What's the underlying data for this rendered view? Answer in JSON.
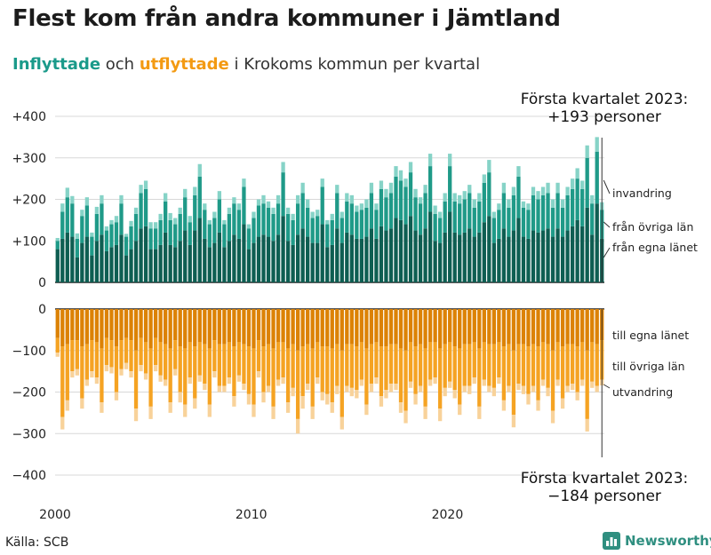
{
  "title": "Flest kom från andra kommuner i Jämtland",
  "subtitle": {
    "part1": "Inflyttade",
    "part2": " och ",
    "part3": "utflyttade",
    "part4": " i Krokoms kommun per kvartal"
  },
  "source": "Källa: SCB",
  "brand": "Newsworthy",
  "colors": {
    "in_dark": "#0e5e52",
    "in_mid": "#1f9a88",
    "in_light": "#86d3c7",
    "out_dark": "#dc8205",
    "out_mid": "#f5a323",
    "out_light": "#f8d29a",
    "grid": "#d8d8d8",
    "axis": "#222222"
  },
  "chart_data": {
    "type": "bar",
    "layout": "diverging stacked bar",
    "x_start": "2000 Q1",
    "x_end": "2023 Q1",
    "x_ticks": [
      "2000",
      "2010",
      "2020"
    ],
    "upper_ticks": [
      "+400",
      "+300",
      "+200",
      "+100",
      "0"
    ],
    "lower_ticks": [
      "0",
      "−100",
      "−200",
      "−300",
      "−400"
    ],
    "upper_ylim": [
      0,
      400
    ],
    "lower_ylim": [
      -400,
      0
    ],
    "in_series_names": [
      "från egna länet",
      "från övriga län",
      "invandring"
    ],
    "out_series_names": [
      "till egna länet",
      "till övriga län",
      "utvandring"
    ],
    "annotation_top_line1": "Första kvartalet 2023:",
    "annotation_top_line2": "+193 personer",
    "annotation_bottom_line1": "Första kvartalet 2023:",
    "annotation_bottom_line2": "−184 personer",
    "inflow_total": [
      107,
      190,
      228,
      208,
      118,
      175,
      205,
      120,
      182,
      210,
      135,
      150,
      160,
      210,
      117,
      148,
      180,
      235,
      245,
      145,
      145,
      165,
      215,
      167,
      155,
      180,
      225,
      160,
      230,
      285,
      190,
      150,
      170,
      220,
      150,
      180,
      205,
      190,
      250,
      140,
      170,
      200,
      210,
      195,
      180,
      210,
      290,
      180,
      165,
      210,
      240,
      200,
      170,
      175,
      250,
      150,
      165,
      235,
      170,
      215,
      210,
      185,
      190,
      200,
      240,
      190,
      245,
      225,
      240,
      280,
      270,
      250,
      290,
      225,
      205,
      235,
      310,
      185,
      170,
      215,
      310,
      215,
      210,
      220,
      235,
      200,
      215,
      260,
      295,
      170,
      190,
      240,
      200,
      230,
      280,
      195,
      190,
      230,
      220,
      230,
      240,
      200,
      240,
      200,
      230,
      250,
      275,
      245,
      330,
      210,
      350,
      193
    ],
    "inflow_egna": [
      80,
      105,
      120,
      110,
      60,
      95,
      110,
      65,
      100,
      115,
      75,
      85,
      90,
      115,
      65,
      80,
      100,
      130,
      135,
      80,
      80,
      90,
      120,
      90,
      85,
      100,
      125,
      90,
      125,
      155,
      105,
      85,
      95,
      120,
      85,
      100,
      115,
      105,
      140,
      80,
      95,
      110,
      115,
      110,
      100,
      115,
      160,
      100,
      90,
      115,
      130,
      110,
      95,
      95,
      140,
      85,
      90,
      130,
      95,
      120,
      115,
      105,
      105,
      110,
      130,
      105,
      135,
      125,
      130,
      155,
      150,
      140,
      160,
      125,
      115,
      130,
      170,
      100,
      95,
      120,
      170,
      120,
      115,
      120,
      130,
      110,
      120,
      145,
      160,
      95,
      105,
      130,
      110,
      125,
      155,
      110,
      105,
      125,
      120,
      125,
      130,
      110,
      130,
      110,
      125,
      135,
      150,
      135,
      180,
      115,
      190,
      105
    ],
    "inflow_ovriga": [
      20,
      65,
      85,
      80,
      45,
      65,
      75,
      45,
      65,
      75,
      50,
      55,
      55,
      75,
      45,
      55,
      65,
      85,
      90,
      50,
      50,
      60,
      75,
      60,
      55,
      65,
      80,
      55,
      85,
      100,
      70,
      55,
      60,
      80,
      55,
      65,
      75,
      70,
      90,
      50,
      60,
      75,
      75,
      70,
      65,
      75,
      105,
      65,
      60,
      75,
      85,
      70,
      60,
      65,
      90,
      55,
      60,
      85,
      60,
      75,
      75,
      65,
      70,
      70,
      85,
      70,
      90,
      80,
      85,
      100,
      95,
      90,
      105,
      80,
      75,
      85,
      110,
      65,
      60,
      75,
      110,
      75,
      75,
      80,
      85,
      70,
      75,
      95,
      105,
      60,
      70,
      85,
      70,
      85,
      100,
      70,
      70,
      85,
      80,
      85,
      85,
      70,
      85,
      70,
      85,
      90,
      100,
      90,
      120,
      75,
      125,
      70
    ],
    "outflow_total": [
      -115,
      -290,
      -245,
      -165,
      -160,
      -240,
      -185,
      -165,
      -180,
      -250,
      -150,
      -155,
      -220,
      -160,
      -145,
      -165,
      -270,
      -150,
      -170,
      -265,
      -150,
      -175,
      -185,
      -250,
      -160,
      -225,
      -260,
      -180,
      -240,
      -175,
      -195,
      -260,
      -165,
      -200,
      -200,
      -180,
      -235,
      -175,
      -195,
      -230,
      -260,
      -165,
      -225,
      -200,
      -265,
      -185,
      -180,
      -250,
      -210,
      -300,
      -240,
      -195,
      -265,
      -180,
      -220,
      -230,
      -250,
      -205,
      -290,
      -200,
      -210,
      -215,
      -185,
      -255,
      -200,
      -180,
      -235,
      -215,
      -200,
      -195,
      -250,
      -275,
      -190,
      -230,
      -200,
      -265,
      -185,
      -180,
      -270,
      -210,
      -190,
      -215,
      -255,
      -200,
      -205,
      -180,
      -265,
      -185,
      -200,
      -210,
      -180,
      -245,
      -200,
      -285,
      -195,
      -205,
      -230,
      -200,
      -245,
      -185,
      -210,
      -275,
      -185,
      -240,
      -200,
      -195,
      -220,
      -185,
      -295,
      -190,
      -200,
      -184
    ],
    "outflow_egna": [
      -70,
      -90,
      -85,
      -75,
      -75,
      -90,
      -85,
      -75,
      -80,
      -95,
      -70,
      -75,
      -90,
      -75,
      -70,
      -75,
      -100,
      -70,
      -80,
      -95,
      -70,
      -80,
      -85,
      -95,
      -75,
      -90,
      -95,
      -80,
      -90,
      -80,
      -85,
      -95,
      -75,
      -85,
      -85,
      -80,
      -90,
      -80,
      -85,
      -90,
      -95,
      -75,
      -90,
      -85,
      -95,
      -80,
      -80,
      -95,
      -85,
      -100,
      -90,
      -85,
      -95,
      -80,
      -90,
      -90,
      -95,
      -85,
      -100,
      -85,
      -85,
      -90,
      -80,
      -95,
      -85,
      -80,
      -90,
      -90,
      -85,
      -85,
      -95,
      -100,
      -80,
      -90,
      -85,
      -95,
      -80,
      -80,
      -95,
      -85,
      -80,
      -90,
      -95,
      -85,
      -85,
      -80,
      -95,
      -80,
      -85,
      -85,
      -80,
      -90,
      -85,
      -100,
      -85,
      -85,
      -90,
      -85,
      -90,
      -80,
      -85,
      -100,
      -80,
      -90,
      -85,
      -85,
      -90,
      -80,
      -100,
      -80,
      -85,
      -75
    ],
    "outflow_ovriga": [
      -35,
      -170,
      -135,
      -75,
      -70,
      -125,
      -85,
      -75,
      -85,
      -130,
      -65,
      -65,
      -110,
      -70,
      -60,
      -75,
      -140,
      -65,
      -75,
      -140,
      -65,
      -80,
      -85,
      -130,
      -70,
      -110,
      -135,
      -85,
      -125,
      -80,
      -95,
      -135,
      -75,
      -100,
      -100,
      -85,
      -120,
      -80,
      -95,
      -115,
      -135,
      -75,
      -110,
      -100,
      -140,
      -90,
      -85,
      -130,
      -105,
      -165,
      -120,
      -95,
      -140,
      -85,
      -110,
      -115,
      -130,
      -100,
      -160,
      -100,
      -105,
      -105,
      -90,
      -135,
      -95,
      -85,
      -120,
      -105,
      -95,
      -95,
      -130,
      -145,
      -95,
      -115,
      -100,
      -140,
      -90,
      -85,
      -145,
      -105,
      -95,
      -105,
      -135,
      -100,
      -100,
      -85,
      -140,
      -90,
      -100,
      -105,
      -85,
      -130,
      -100,
      -155,
      -95,
      -100,
      -115,
      -100,
      -130,
      -90,
      -105,
      -145,
      -90,
      -125,
      -100,
      -95,
      -110,
      -90,
      -165,
      -95,
      -100,
      -95
    ]
  }
}
